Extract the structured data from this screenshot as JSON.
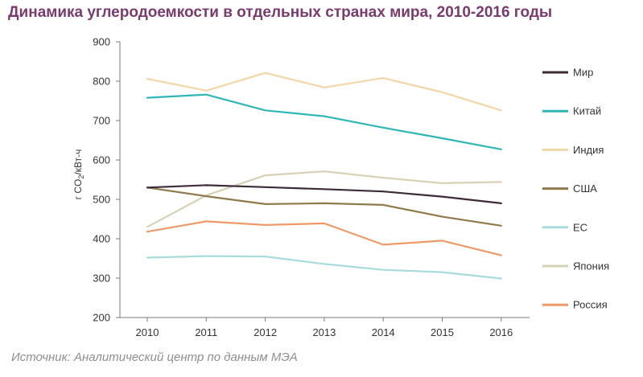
{
  "header": {
    "title": "Динамика углеродоемкости в отдельных странах мира, 2010-2016 годы"
  },
  "footer": {
    "source": "Источник: Аналитический центр по данным МЭА"
  },
  "chart_data": {
    "type": "line",
    "ylabel": "г CO2/кВт-ч",
    "ylim": [
      200,
      900
    ],
    "yticks": [
      200,
      300,
      400,
      500,
      600,
      700,
      800,
      900
    ],
    "x": [
      "2010",
      "2011",
      "2012",
      "2013",
      "2014",
      "2015",
      "2016"
    ],
    "legend_position": "right",
    "grid": false,
    "series": [
      {
        "name": "Мир",
        "color": "#3d2b38",
        "values": [
          530,
          536,
          531,
          526,
          520,
          507,
          490
        ]
      },
      {
        "name": "Китай",
        "color": "#2fb6b6",
        "values": [
          758,
          766,
          726,
          711,
          682,
          655,
          627
        ]
      },
      {
        "name": "Индия",
        "color": "#f2d6a8",
        "values": [
          806,
          776,
          821,
          784,
          808,
          772,
          726
        ]
      },
      {
        "name": "США",
        "color": "#8f7a4b",
        "values": [
          530,
          508,
          488,
          490,
          486,
          456,
          433
        ]
      },
      {
        "name": "ЕС",
        "color": "#a8dcdc",
        "values": [
          352,
          356,
          355,
          336,
          321,
          315,
          299
        ]
      },
      {
        "name": "Япония",
        "color": "#d7d2b4",
        "values": [
          430,
          510,
          561,
          571,
          555,
          541,
          544
        ]
      },
      {
        "name": "Россия",
        "color": "#ee9a68",
        "values": [
          418,
          444,
          435,
          439,
          385,
          395,
          358
        ]
      }
    ]
  }
}
